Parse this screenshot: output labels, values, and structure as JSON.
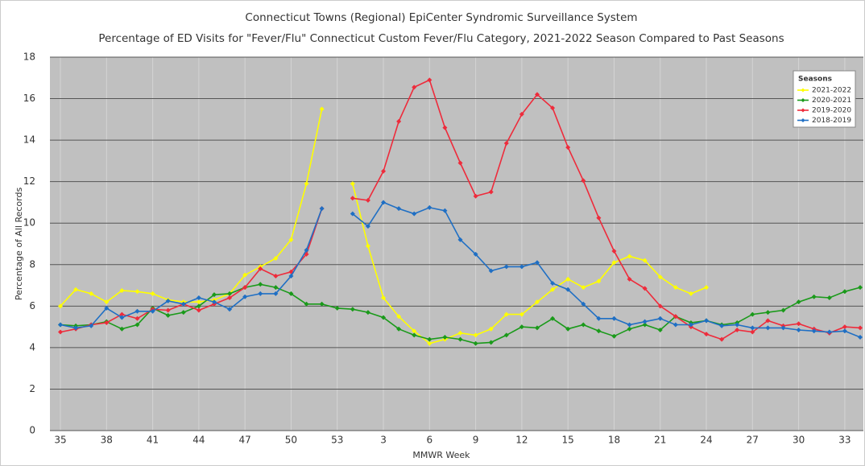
{
  "chart_data": {
    "type": "line",
    "title": "Connecticut Towns (Regional) EpiCenter Syndromic Surveillance System",
    "subtitle": "Percentage of ED Visits for \"Fever/Flu\" Connecticut Custom Fever/Flu Category, 2021-2022 Season Compared to Past Seasons",
    "x_label": "MMWR Week",
    "y_label": "Percentage of All Records",
    "legend_title": "Seasons",
    "legend_position": "upper right",
    "grid": true,
    "ylim": [
      0,
      18
    ],
    "yticks": [
      0,
      2,
      4,
      6,
      8,
      10,
      12,
      14,
      16,
      18
    ],
    "categories": [
      "35",
      null,
      null,
      "38",
      null,
      null,
      "41",
      null,
      null,
      "44",
      null,
      null,
      "47",
      null,
      null,
      "50",
      null,
      null,
      "53",
      null,
      null,
      "3",
      null,
      null,
      "6",
      null,
      null,
      "9",
      null,
      null,
      "12",
      null,
      null,
      "15",
      null,
      null,
      "18",
      null,
      null,
      "21",
      null,
      null,
      "24",
      null,
      null,
      "27",
      null,
      null,
      "30",
      null,
      null,
      "33",
      null
    ],
    "series": [
      {
        "name": "2021-2022",
        "color": "#ffff00",
        "values": [
          6.0,
          6.8,
          6.6,
          6.2,
          6.75,
          6.7,
          6.6,
          6.3,
          6.2,
          6.2,
          6.3,
          6.6,
          7.5,
          7.9,
          8.3,
          9.2,
          11.9,
          15.5,
          null,
          11.9,
          8.9,
          6.4,
          5.5,
          4.8,
          4.2,
          4.4,
          4.7,
          4.6,
          4.9,
          5.6,
          5.6,
          6.2,
          6.8,
          7.3,
          6.9,
          7.2,
          8.1,
          8.4,
          8.2,
          7.4,
          6.9,
          6.6,
          6.9,
          null,
          null,
          null,
          null,
          null,
          null,
          null,
          null,
          null,
          null
        ]
      },
      {
        "name": "2020-2021",
        "color": "#1a9a1a",
        "values": [
          5.1,
          5.05,
          5.1,
          5.25,
          4.9,
          5.1,
          5.9,
          5.55,
          5.7,
          6.0,
          6.55,
          6.6,
          6.9,
          7.05,
          6.9,
          6.6,
          6.1,
          6.1,
          5.9,
          5.85,
          5.7,
          5.45,
          4.9,
          4.6,
          4.4,
          4.5,
          4.4,
          4.2,
          4.25,
          4.6,
          5.0,
          4.95,
          5.4,
          4.9,
          5.1,
          4.8,
          4.55,
          4.9,
          5.1,
          4.85,
          5.5,
          5.2,
          5.3,
          5.1,
          5.2,
          5.6,
          5.7,
          5.8,
          6.2,
          6.45,
          6.4,
          6.7,
          6.9
        ]
      },
      {
        "name": "2019-2020",
        "color": "#ee2b3b",
        "values": [
          4.75,
          4.9,
          5.1,
          5.2,
          5.6,
          5.4,
          5.85,
          5.8,
          6.1,
          5.8,
          6.1,
          6.4,
          6.9,
          7.8,
          7.45,
          7.65,
          8.5,
          10.7,
          null,
          11.2,
          11.1,
          12.5,
          14.9,
          16.55,
          16.9,
          14.6,
          12.9,
          11.3,
          11.5,
          13.85,
          15.25,
          16.2,
          15.55,
          13.65,
          12.05,
          10.25,
          8.65,
          7.3,
          6.85,
          6.0,
          5.5,
          5.0,
          4.65,
          4.4,
          4.85,
          4.75,
          5.3,
          5.05,
          5.15,
          4.9,
          4.7,
          5.0,
          4.95
        ]
      },
      {
        "name": "2018-2019",
        "color": "#1f6fc4",
        "values": [
          5.1,
          4.95,
          5.05,
          5.9,
          5.45,
          5.75,
          5.75,
          6.25,
          6.1,
          6.4,
          6.2,
          5.85,
          6.45,
          6.6,
          6.6,
          7.45,
          8.7,
          10.7,
          null,
          10.45,
          9.85,
          11.0,
          10.7,
          10.45,
          10.75,
          10.6,
          9.2,
          8.5,
          7.7,
          7.9,
          7.9,
          8.1,
          7.1,
          6.8,
          6.1,
          5.4,
          5.4,
          5.1,
          5.25,
          5.4,
          5.1,
          5.1,
          5.3,
          5.05,
          5.1,
          4.95,
          4.95,
          4.95,
          4.85,
          4.8,
          4.75,
          4.8,
          4.5
        ]
      }
    ]
  }
}
